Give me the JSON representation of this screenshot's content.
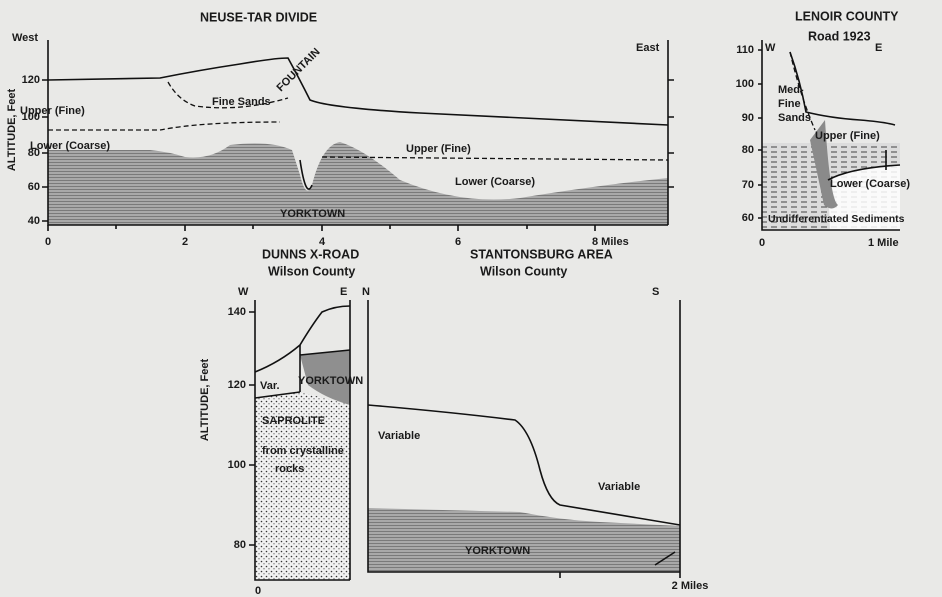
{
  "panels": [
    {
      "title": [
        "NEUSE-TAR DIVIDE"
      ],
      "directions": [
        "West",
        "East"
      ],
      "y_axis_label": "ALTITUDE, Feet",
      "y_ticks": [
        "120",
        "100",
        "80",
        "60",
        "40"
      ],
      "x_ticks": [
        "0",
        "2",
        "4",
        "6",
        "8 Miles"
      ],
      "labels": [
        "FOUNTAIN",
        "Fine Sands",
        "Upper (Fine)",
        "Lower (Coarse)",
        "Upper (Fine)",
        "Lower (Coarse)",
        "YORKTOWN"
      ]
    },
    {
      "title": [
        "LENOIR COUNTY",
        "Road 1923"
      ],
      "directions": [
        "W",
        "E"
      ],
      "y_ticks": [
        "110",
        "100",
        "90",
        "80",
        "70",
        "60"
      ],
      "x_ticks": [
        "0",
        "1 Mile"
      ],
      "labels": [
        "Med-",
        "Fine",
        "Sands",
        "Upper (Fine)",
        "Lower (Coarse)",
        "Undifferentiated Sediments"
      ]
    },
    {
      "title": [
        "DUNNS X-ROAD",
        "Wilson County"
      ],
      "directions": [
        "W",
        "E"
      ],
      "y_axis_label": "ALTITUDE, Feet",
      "y_ticks": [
        "140",
        "120",
        "100",
        "80"
      ],
      "x_ticks": [
        "0"
      ],
      "labels": [
        "Var.",
        "YORKTOWN",
        "SAPROLITE",
        "from crystalline",
        "rocks"
      ]
    },
    {
      "title": [
        "STANTONSBURG AREA",
        "Wilson County"
      ],
      "directions": [
        "N",
        "S"
      ],
      "x_ticks": [
        "2 Miles"
      ],
      "labels": [
        "Variable",
        "Variable",
        "YORKTOWN"
      ]
    }
  ]
}
